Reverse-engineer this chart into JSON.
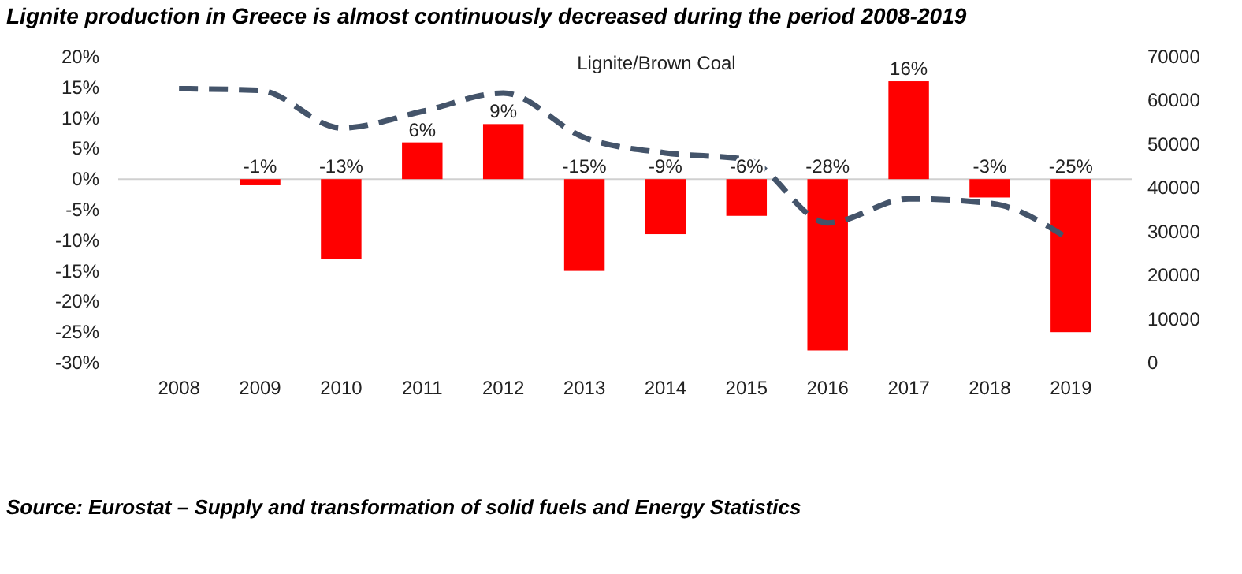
{
  "chart_data": {
    "type": "bar",
    "title": "Lignite production in Greece is almost continuously decreased during the period 2008-2019",
    "subtitle": "Lignite/Brown Coal",
    "categories": [
      "2008",
      "2009",
      "2010",
      "2011",
      "2012",
      "2013",
      "2014",
      "2015",
      "2016",
      "2017",
      "2018",
      "2019"
    ],
    "series": [
      {
        "color": "#ff0000",
        "values": [
          null,
          -1,
          -13,
          6,
          9,
          -15,
          -9,
          -6,
          -28,
          16,
          -3,
          -25
        ],
        "value_labels": [
          null,
          "-1%",
          "-13%",
          "6%",
          "9%",
          "-15%",
          "-9%",
          "-6%",
          "-28%",
          "16%",
          "-3%",
          "-25%"
        ]
      },
      {
        "type": "line",
        "axis": "y2",
        "color": "#44546a",
        "line_style": "dashed",
        "values": [
          62700,
          62300,
          53700,
          57500,
          61700,
          51500,
          48000,
          46500,
          32000,
          37500,
          36500,
          28000
        ]
      }
    ],
    "ylim": [
      -30,
      20
    ],
    "yticks": [
      {
        "value": -30,
        "label": "-30%"
      },
      {
        "value": -25,
        "label": "-25%"
      },
      {
        "value": -20,
        "label": "-20%"
      },
      {
        "value": -15,
        "label": "-15%"
      },
      {
        "value": -10,
        "label": "-10%"
      },
      {
        "value": -5,
        "label": "-5%"
      },
      {
        "value": 0,
        "label": "0%"
      },
      {
        "value": 5,
        "label": "5%"
      },
      {
        "value": 10,
        "label": "10%"
      },
      {
        "value": 15,
        "label": "15%"
      },
      {
        "value": 20,
        "label": "20%"
      }
    ],
    "y2lim": [
      0,
      70000
    ],
    "y2ticks": [
      0,
      10000,
      20000,
      30000,
      40000,
      50000,
      60000,
      70000
    ],
    "annotations": [
      "Source: Eurostat – Supply and transformation of solid fuels and Energy Statistics"
    ]
  }
}
